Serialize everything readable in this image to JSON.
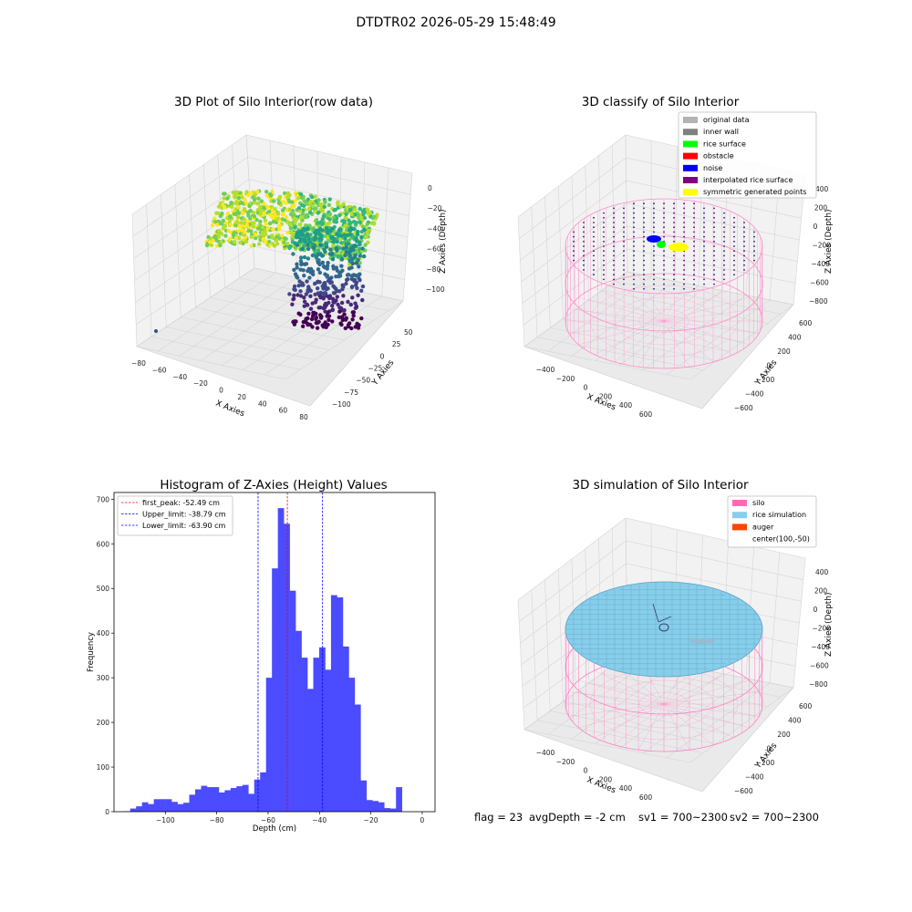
{
  "suptitle": "DTDTR02 2026-05-29 15:48:49",
  "footer": {
    "flag": "flag = 23",
    "avg_depth": "avgDepth = -2 cm",
    "sv1": "sv1 = 700~2300",
    "sv2": "sv2 = 700~2300"
  },
  "panels": {
    "raw": {
      "title": "3D Plot of Silo Interior(row data)",
      "xlabel": "X Axies",
      "ylabel": "Y Axies",
      "zlabel": "Z Axies (Depth)",
      "xticks": [
        "−80",
        "−60",
        "−40",
        "−20",
        "0",
        "20",
        "40",
        "60",
        "80"
      ],
      "yticks": [
        "50",
        "25",
        "0",
        "−25",
        "−50",
        "−75",
        "−100"
      ],
      "zticks": [
        "0",
        "−20",
        "−40",
        "−60",
        "−80",
        "−100"
      ]
    },
    "classify": {
      "title": "3D classify of Silo Interior",
      "xlabel": "X Axies",
      "ylabel": "Y Axies",
      "zlabel": "Z Axies (Depth)",
      "xticks": [
        "−400",
        "−200",
        "0",
        "200",
        "400",
        "600"
      ],
      "yticks": [
        "600",
        "400",
        "200",
        "0",
        "−200",
        "−400",
        "−600"
      ],
      "zticks": [
        "400",
        "200",
        "0",
        "−200",
        "−400",
        "−600",
        "−800"
      ],
      "legend": [
        {
          "label": "original data",
          "color": "#b3b3b3"
        },
        {
          "label": "inner wall",
          "color": "#808080"
        },
        {
          "label": "rice surface",
          "color": "#00ff00"
        },
        {
          "label": "obstacle",
          "color": "#ff0000"
        },
        {
          "label": "noise",
          "color": "#0000ff"
        },
        {
          "label": "interpolated rice surface",
          "color": "#800080"
        },
        {
          "label": "symmetric generated points",
          "color": "#ffff00"
        }
      ]
    },
    "simulation": {
      "title": "3D simulation of Silo Interior",
      "xlabel": "X Axies",
      "ylabel": "Y Axies",
      "zlabel": "Z Axies (Depth)",
      "xticks": [
        "−400",
        "−200",
        "0",
        "200",
        "400",
        "600"
      ],
      "yticks": [
        "600",
        "400",
        "200",
        "0",
        "−200",
        "−400",
        "−600"
      ],
      "zticks": [
        "400",
        "200",
        "0",
        "−200",
        "−400",
        "−600",
        "−800"
      ],
      "legend": [
        {
          "label": "silo",
          "color": "#ff69b4"
        },
        {
          "label": "rice simulation",
          "color": "#87ceeb"
        },
        {
          "label": "auger",
          "color": "#ff4500"
        },
        {
          "label": "center(100,-50)",
          "color": ""
        }
      ]
    }
  },
  "chart_data": {
    "type": "bar",
    "title": "Histogram of Z-Axies (Height) Values",
    "xlabel": "Depth (cm)",
    "ylabel": "Frequency",
    "xlim": [
      -120,
      5
    ],
    "ylim": [
      0,
      715
    ],
    "xticks": [
      -100,
      -80,
      -60,
      -40,
      -20,
      0
    ],
    "yticks": [
      0,
      100,
      200,
      300,
      400,
      500,
      600,
      700
    ],
    "bin_start": -116,
    "bin_width": 2.3,
    "values": [
      1,
      7,
      12,
      21,
      17,
      28,
      28,
      28,
      22,
      17,
      20,
      38,
      50,
      58,
      55,
      55,
      43,
      48,
      53,
      57,
      60,
      40,
      72,
      88,
      300,
      545,
      680,
      645,
      495,
      405,
      345,
      275,
      345,
      368,
      318,
      485,
      480,
      370,
      300,
      240,
      70,
      26,
      24,
      21,
      8,
      7,
      55
    ],
    "bar_color": "#4b4bff",
    "lines": [
      {
        "label": "first_peak: -52.49 cm",
        "x": -52.49,
        "color": "#ff0000"
      },
      {
        "label": "Upper_limit: -38.79 cm",
        "x": -38.79,
        "color": "#0000ff"
      },
      {
        "label": "Lower_limit: -63.90 cm",
        "x": -63.9,
        "color": "#0000ff"
      }
    ],
    "legend_position": "upper-left"
  }
}
